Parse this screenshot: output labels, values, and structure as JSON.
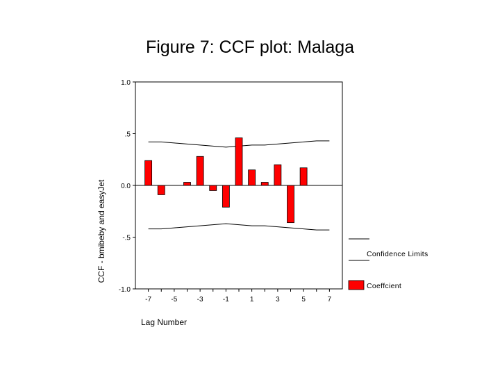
{
  "page": {
    "title": "Figure 7: CCF plot: Malaga"
  },
  "chart_data": {
    "type": "bar",
    "title": "Figure 7: CCF plot: Malaga",
    "xlabel": "Lag Number",
    "ylabel": "CCF - bmibeby and easyJet",
    "x_tick_labels": [
      "-7",
      "-5",
      "-3",
      "-1",
      "1",
      "3",
      "5",
      "7"
    ],
    "y_tick_labels": [
      "1.0",
      ".5",
      "0.0",
      "-.5",
      "-1.0"
    ],
    "ylim": [
      -1.0,
      1.0
    ],
    "xlim": [
      -8,
      8
    ],
    "grid": false,
    "legend_position": "right",
    "series": [
      {
        "name": "Coeffcient",
        "color": "#ff0000",
        "x": [
          -7,
          -6,
          -5,
          -4,
          -3,
          -2,
          -1,
          0,
          1,
          2,
          3,
          4,
          5,
          6,
          7
        ],
        "values": [
          0.24,
          -0.09,
          0.0,
          0.03,
          0.28,
          -0.05,
          -0.21,
          0.46,
          0.15,
          0.03,
          0.2,
          -0.36,
          0.17,
          null,
          null
        ]
      }
    ],
    "confidence_limits": {
      "name": "Confidence Limits",
      "x": [
        -7,
        -6,
        -5,
        -4,
        -3,
        -2,
        -1,
        0,
        1,
        2,
        3,
        4,
        5,
        6,
        7
      ],
      "upper": [
        0.42,
        0.42,
        0.41,
        0.4,
        0.39,
        0.38,
        0.37,
        0.38,
        0.39,
        0.39,
        0.4,
        0.41,
        0.42,
        0.43,
        0.43
      ],
      "lower": [
        -0.42,
        -0.42,
        -0.41,
        -0.4,
        -0.39,
        -0.38,
        -0.37,
        -0.38,
        -0.39,
        -0.39,
        -0.4,
        -0.41,
        -0.42,
        -0.43,
        -0.43
      ]
    },
    "legend": {
      "confidence_label": "Confidence Limits",
      "coefficient_label": "Coeffcient"
    }
  }
}
